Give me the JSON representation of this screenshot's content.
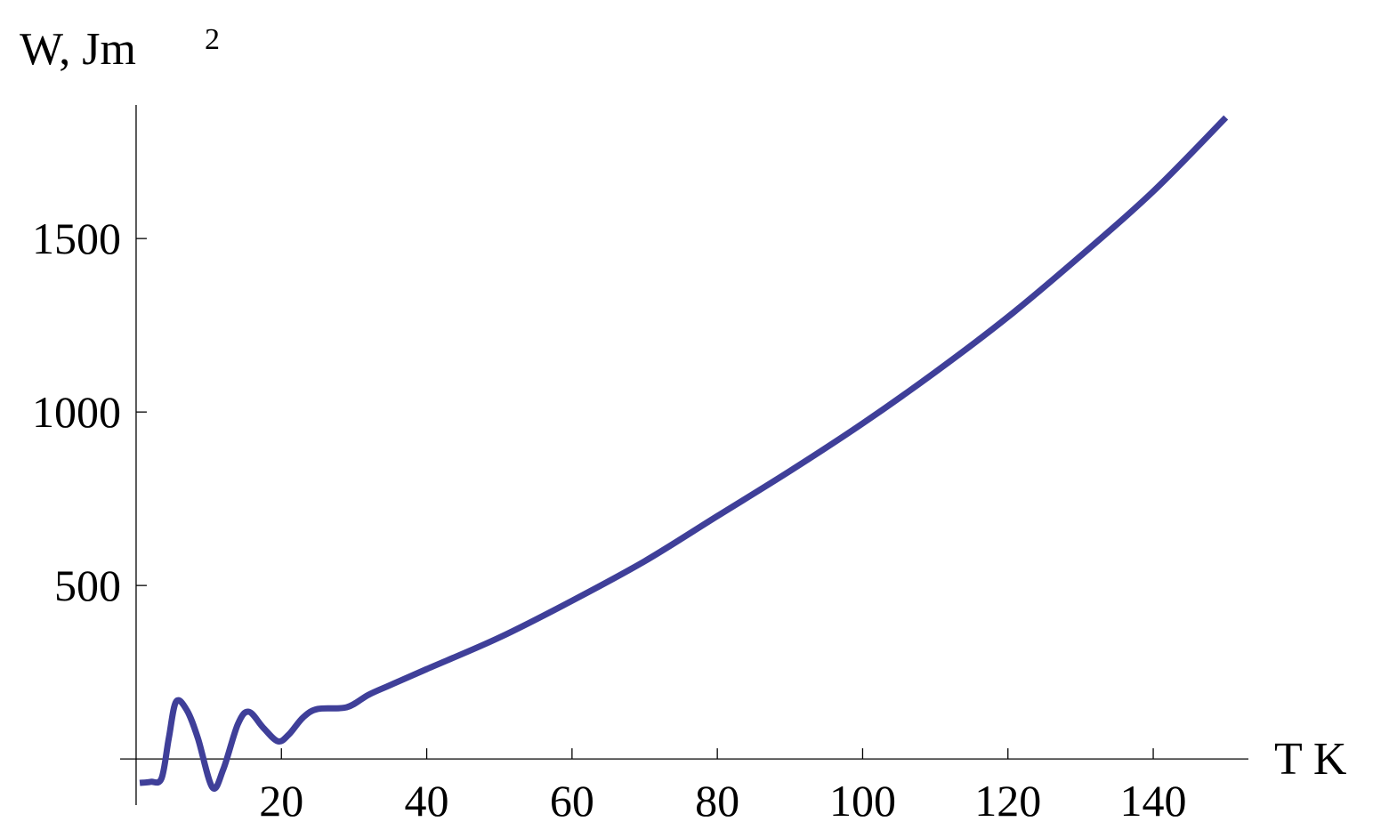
{
  "chart_data": {
    "type": "line",
    "y_label": "W,  Jm",
    "y_label_superscript": "2",
    "x_label": "T  K",
    "xlim": [
      -2.2,
      153.1
    ],
    "ylim": [
      -133,
      1885
    ],
    "xticks": [
      20,
      40,
      60,
      80,
      100,
      120,
      140
    ],
    "yticks": [
      500,
      1000,
      1500
    ],
    "series": [
      {
        "color": "#3f3f99",
        "x": [
          0.5,
          2,
          3.5,
          4.5,
          5.5,
          7,
          8.5,
          10.5,
          12,
          14,
          15.5,
          17.5,
          19.5,
          21,
          23,
          25,
          29,
          32,
          35,
          40,
          50,
          60,
          70,
          80,
          90,
          100,
          110,
          120,
          130,
          140,
          150
        ],
        "values": [
          -69,
          -66,
          -56,
          60,
          165,
          140,
          60,
          -82,
          -30,
          100,
          136,
          90,
          51,
          70,
          120,
          144,
          149,
          185,
          213,
          259,
          350,
          456,
          570,
          700,
          830,
          967,
          1115,
          1274,
          1450,
          1636,
          1849
        ]
      }
    ]
  }
}
